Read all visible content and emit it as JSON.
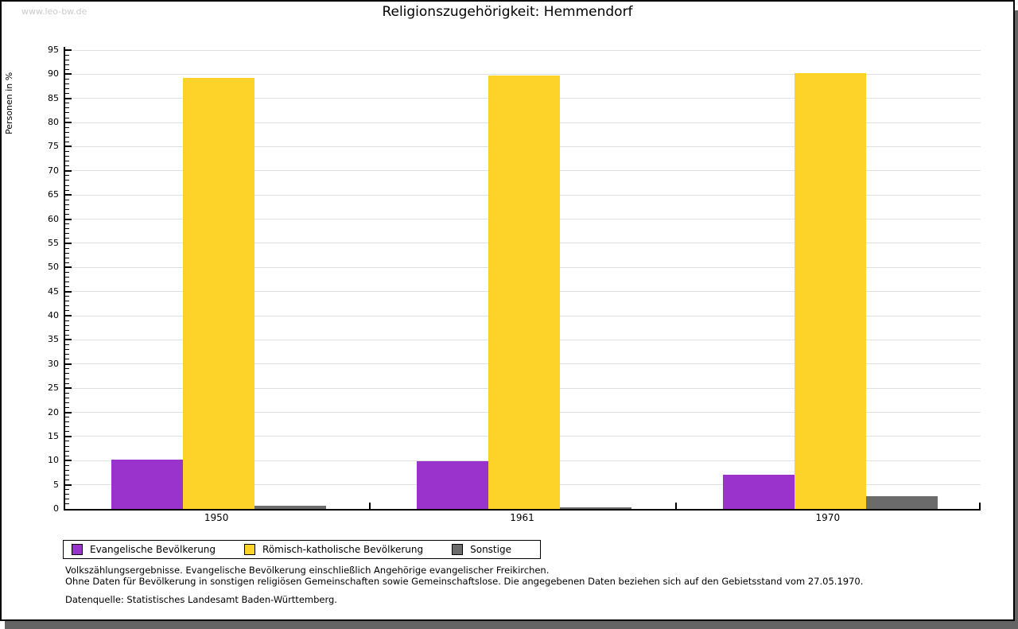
{
  "watermark": "www.leo-bw.de",
  "title": "Religionszugehörigkeit: Hemmendorf",
  "chart_data": {
    "type": "bar",
    "title": "Religionszugehörigkeit: Hemmendorf",
    "xlabel": "",
    "ylabel": "Personen in %",
    "categories": [
      "1950",
      "1961",
      "1970"
    ],
    "series": [
      {
        "name": "Evangelische Bevölkerung",
        "color": "#9933cc",
        "values": [
          10.2,
          9.8,
          7.1
        ]
      },
      {
        "name": "Römisch-katholische Bevölkerung",
        "color": "#fdd32a",
        "values": [
          89.2,
          89.8,
          90.2
        ]
      },
      {
        "name": "Sonstige",
        "color": "#6b6b6b",
        "values": [
          0.6,
          0.4,
          2.7
        ]
      }
    ],
    "ylim": [
      0,
      95
    ],
    "ytick_step": 5,
    "minor_tick_step": 1,
    "grid": true,
    "legend_position": "bottom"
  },
  "footnotes": [
    "Volkszählungsergebnisse. Evangelische Bevölkerung einschließlich Angehörige evangelischer Freikirchen.",
    "Ohne Daten für Bevölkerung in sonstigen religiösen Gemeinschaften sowie Gemeinschaftslose. Die angegebenen Daten beziehen sich auf den Gebietsstand vom 27.05.1970.",
    "Datenquelle: Statistisches Landesamt Baden-Württemberg."
  ]
}
